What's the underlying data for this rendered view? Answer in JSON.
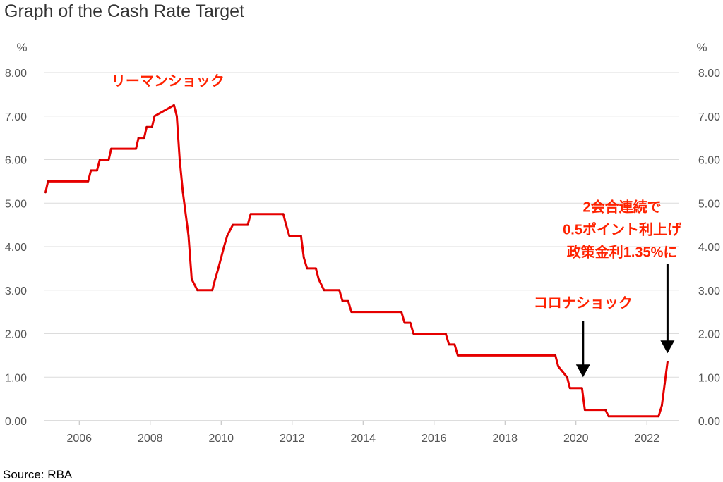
{
  "title": "Graph of the Cash Rate Target",
  "source": "Source: RBA",
  "colors": {
    "line": "#e60000",
    "annotation": "#ff2200",
    "arrow": "#000000",
    "grid": "#dcdcdc"
  },
  "chart_data": {
    "type": "line",
    "title": "Graph of the Cash Rate Target",
    "y_unit": "%",
    "ylim": [
      0,
      8
    ],
    "xlim": [
      2005.0,
      2022.8
    ],
    "yticks": [
      0,
      1,
      2,
      3,
      4,
      5,
      6,
      7,
      8
    ],
    "ytick_labels": [
      "0.00",
      "1.00",
      "2.00",
      "3.00",
      "4.00",
      "5.00",
      "6.00",
      "7.00",
      "8.00"
    ],
    "xticks": [
      2006,
      2008,
      2010,
      2012,
      2014,
      2016,
      2018,
      2020,
      2022
    ],
    "xtick_labels": [
      "2006",
      "2008",
      "2010",
      "2012",
      "2014",
      "2016",
      "2018",
      "2020",
      "2022"
    ],
    "grid": true,
    "dual_y_axis": true,
    "series": [
      {
        "x": [
          2005.05,
          2005.12,
          2006.25,
          2006.33,
          2006.5,
          2006.58,
          2006.83,
          2006.9,
          2007.6,
          2007.67,
          2007.83,
          2007.9,
          2008.05,
          2008.12,
          2008.67,
          2008.75,
          2008.83,
          2008.92,
          2009.08,
          2009.17,
          2009.33,
          2009.75,
          2009.83,
          2009.92,
          2010.08,
          2010.17,
          2010.33,
          2010.75,
          2010.83,
          2011.75,
          2011.83,
          2011.92,
          2012.25,
          2012.33,
          2012.42,
          2012.67,
          2012.75,
          2012.9,
          2013.33,
          2013.42,
          2013.58,
          2013.67,
          2015.08,
          2015.17,
          2015.33,
          2015.42,
          2016.33,
          2016.42,
          2016.58,
          2016.67,
          2019.42,
          2019.5,
          2019.75,
          2019.83,
          2020.17,
          2020.25,
          2020.83,
          2020.92,
          2022.33,
          2022.42,
          2022.5,
          2022.58
        ],
        "y": [
          5.25,
          5.5,
          5.5,
          5.75,
          5.75,
          6.0,
          6.0,
          6.25,
          6.25,
          6.5,
          6.5,
          6.75,
          6.75,
          7.0,
          7.25,
          7.0,
          6.0,
          5.25,
          4.25,
          3.25,
          3.0,
          3.0,
          3.25,
          3.5,
          4.0,
          4.25,
          4.5,
          4.5,
          4.75,
          4.75,
          4.5,
          4.25,
          4.25,
          3.75,
          3.5,
          3.5,
          3.25,
          3.0,
          3.0,
          2.75,
          2.75,
          2.5,
          2.5,
          2.25,
          2.25,
          2.0,
          2.0,
          1.75,
          1.75,
          1.5,
          1.5,
          1.25,
          1.0,
          0.75,
          0.75,
          0.25,
          0.25,
          0.1,
          0.1,
          0.35,
          0.85,
          1.35
        ]
      }
    ],
    "annotations": [
      {
        "text": "リーマンショック",
        "x": 2008.5,
        "y": 7.7
      },
      {
        "text": "コロナショック",
        "x": 2020.2,
        "y": 2.6
      },
      {
        "lines": [
          "2会合連続で",
          "0.5ポイント利上げ",
          "政策金利1.35%に"
        ],
        "x": 2021.3,
        "y": 4.8
      }
    ],
    "arrows": [
      {
        "x": 2020.2,
        "y_from": 2.3,
        "y_to": 1.0
      },
      {
        "x": 2022.58,
        "y_from": 3.6,
        "y_to": 1.55
      }
    ]
  }
}
